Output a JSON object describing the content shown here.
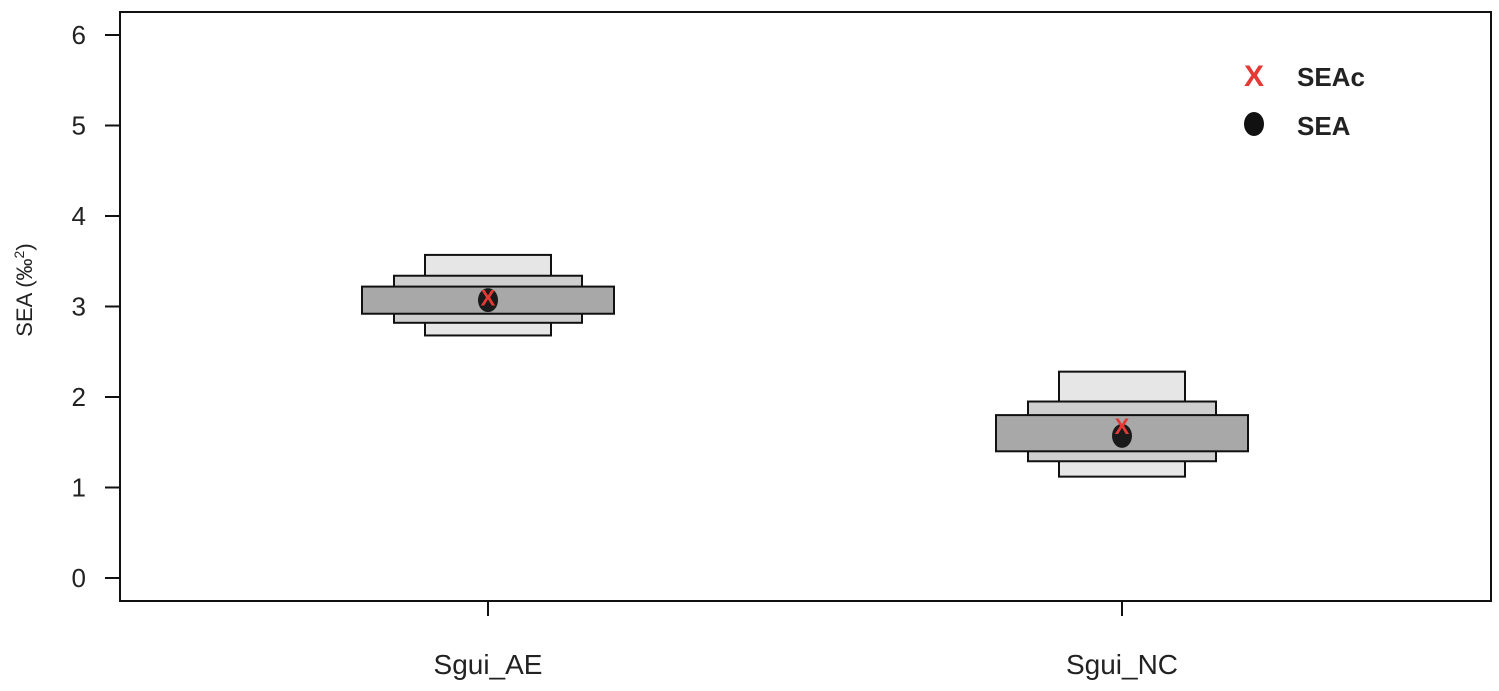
{
  "chart_data": {
    "type": "box",
    "ylabel": "SEA (‰²)",
    "ylabel_prefix": "SEA (‰",
    "ylabel_sup": "2",
    "ylabel_suffix": ")",
    "ylim": [
      0,
      6
    ],
    "yticks": [
      "0",
      "1",
      "2",
      "3",
      "4",
      "5",
      "6"
    ],
    "categories": [
      "Sgui_AE",
      "Sgui_NC"
    ],
    "groups": [
      {
        "name": "Sgui_AE",
        "sea": 3.07,
        "seac": 3.1,
        "intervals": [
          {
            "level": "outer",
            "low": 2.68,
            "high": 3.57
          },
          {
            "level": "middle",
            "low": 2.82,
            "high": 3.34
          },
          {
            "level": "inner",
            "low": 2.92,
            "high": 3.22
          }
        ]
      },
      {
        "name": "Sgui_NC",
        "sea": 1.57,
        "seac": 1.68,
        "intervals": [
          {
            "level": "outer",
            "low": 1.12,
            "high": 2.28
          },
          {
            "level": "middle",
            "low": 1.29,
            "high": 1.95
          },
          {
            "level": "inner",
            "low": 1.4,
            "high": 1.8
          }
        ]
      }
    ],
    "legend": {
      "placement": "top-right",
      "entries": [
        {
          "symbol": "X",
          "label": "SEAc",
          "color": "#e53935"
        },
        {
          "symbol": "●",
          "label": "SEA",
          "color": "#111111"
        }
      ]
    },
    "colors": {
      "outer": "#e6e6e6",
      "middle": "#cfcfcf",
      "inner": "#a8a8a8",
      "sea": "#1a1a1a",
      "seac": "#e53935"
    }
  }
}
